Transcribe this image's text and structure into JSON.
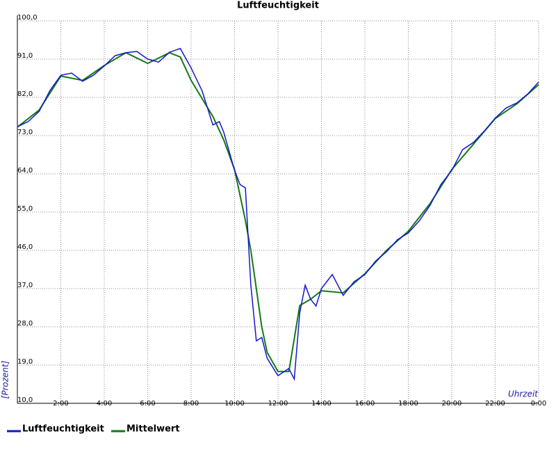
{
  "chart_data": {
    "type": "line",
    "title": "Luftfeuchtigkeit",
    "y_label": "[Prozent]",
    "x_label": "Uhrzeit",
    "xlim": [
      0,
      24
    ],
    "ylim": [
      10,
      100
    ],
    "xticks": [
      {
        "value": 2,
        "label": "2:00"
      },
      {
        "value": 4,
        "label": "4:00"
      },
      {
        "value": 6,
        "label": "6:00"
      },
      {
        "value": 8,
        "label": "8:00"
      },
      {
        "value": 10,
        "label": "10:00"
      },
      {
        "value": 12,
        "label": "12:00"
      },
      {
        "value": 14,
        "label": "14:00"
      },
      {
        "value": 16,
        "label": "16:00"
      },
      {
        "value": 18,
        "label": "18:00"
      },
      {
        "value": 20,
        "label": "20:00"
      },
      {
        "value": 22,
        "label": "22:00"
      },
      {
        "value": 24,
        "label": "0:00"
      }
    ],
    "yticks": [
      {
        "value": 10,
        "label": "10,0"
      },
      {
        "value": 19,
        "label": "19,0"
      },
      {
        "value": 28,
        "label": "28,0"
      },
      {
        "value": 37,
        "label": "37,0"
      },
      {
        "value": 46,
        "label": "46,0"
      },
      {
        "value": 55,
        "label": "55,0"
      },
      {
        "value": 64,
        "label": "64,0"
      },
      {
        "value": 73,
        "label": "73,0"
      },
      {
        "value": 82,
        "label": "82,0"
      },
      {
        "value": 91,
        "label": "91,0"
      },
      {
        "value": 100,
        "label": "100,0"
      }
    ],
    "grid": true,
    "series": [
      {
        "name": "Luftfeuchtigkeit",
        "color": "#1414d2",
        "x": [
          0,
          0.5,
          1,
          1.5,
          2,
          2.5,
          3,
          3.5,
          4,
          4.5,
          5,
          5.5,
          6,
          6.5,
          7,
          7.5,
          8,
          8.5,
          9,
          9.3,
          9.5,
          10,
          10.25,
          10.5,
          10.75,
          11,
          11.25,
          11.5,
          12,
          12.5,
          12.75,
          13,
          13.25,
          13.5,
          13.75,
          14,
          14.5,
          15,
          15.5,
          16,
          16.5,
          17,
          17.5,
          18,
          18.5,
          19,
          19.5,
          20,
          20.5,
          21,
          21.5,
          22,
          22.5,
          23,
          23.5,
          24
        ],
        "values": [
          75.1,
          76.3,
          78.7,
          83.6,
          87.2,
          87.7,
          85.8,
          87.2,
          89.4,
          91.8,
          92.5,
          92.8,
          91.0,
          90.3,
          92.6,
          93.5,
          88.9,
          83.6,
          75.5,
          76.3,
          73.8,
          64.8,
          61.5,
          60.7,
          37.8,
          24.7,
          25.5,
          20.6,
          16.5,
          18.2,
          15.7,
          31.3,
          37.8,
          34.5,
          32.9,
          37.0,
          40.3,
          35.4,
          38.6,
          40.3,
          43.5,
          45.7,
          48.5,
          50.1,
          52.9,
          56.6,
          61.5,
          64.8,
          69.7,
          71.4,
          74.1,
          77.1,
          79.5,
          80.7,
          82.8,
          85.6
        ]
      },
      {
        "name": "Mittelwert",
        "color": "#137a13",
        "x": [
          0,
          1,
          2,
          3,
          4,
          5,
          6,
          7,
          7.5,
          8,
          9,
          9.5,
          10,
          10.5,
          10.75,
          11,
          11.25,
          11.5,
          12,
          12.5,
          13,
          13.5,
          14,
          15,
          16,
          17,
          18,
          19,
          20,
          21,
          22,
          23,
          24
        ],
        "values": [
          75.0,
          79.0,
          87.0,
          86.0,
          89.5,
          92.5,
          90.0,
          92.5,
          91.5,
          86.0,
          77.5,
          72.0,
          65.0,
          53.0,
          46.0,
          37.0,
          28.0,
          22.0,
          17.5,
          17.5,
          33.0,
          34.5,
          36.5,
          36.0,
          40.5,
          46.0,
          50.5,
          57.0,
          65.0,
          71.0,
          77.0,
          80.5,
          85.0
        ]
      }
    ]
  }
}
